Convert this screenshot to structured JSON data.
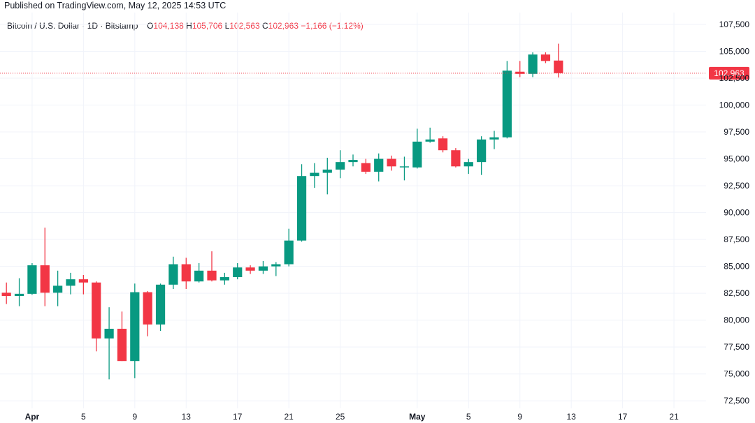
{
  "header": {
    "published": "Published on TradingView.com, May 12, 2025 14:53 UTC"
  },
  "legend": {
    "symbol": "Bitcoin / U.S. Dollar · 1D · Bitstamp",
    "o_label": "O",
    "o_value": "104,138",
    "h_label": "H",
    "h_value": "105,706",
    "l_label": "L",
    "l_value": "102,563",
    "c_label": "C",
    "c_value": "102,963",
    "change": "−1,166 (−1.12%)"
  },
  "colors": {
    "up": "#089981",
    "down": "#f23645",
    "grid": "#f0f3fa",
    "price_line": "#f23645",
    "axis_text": "#131722"
  },
  "chart_data": {
    "type": "candlestick",
    "title": "Bitcoin / U.S. Dollar · 1D · Bitstamp",
    "last_price_label": "102,963",
    "last_price": 102963,
    "ylim": [
      71800,
      108600
    ],
    "y_ticks": [
      72500,
      75000,
      77500,
      80000,
      82500,
      85000,
      87500,
      90000,
      92500,
      95000,
      97500,
      100000,
      102500,
      105000,
      107500
    ],
    "y_tick_labels": [
      "72,500",
      "75,000",
      "77,500",
      "80,000",
      "82,500",
      "85,000",
      "87,500",
      "90,000",
      "92,500",
      "95,000",
      "97,500",
      "100,000",
      "102,500",
      "105,000",
      "107,500"
    ],
    "x_tick_labels": [
      {
        "label": "Apr",
        "index": 2,
        "bold": true
      },
      {
        "label": "5",
        "index": 6,
        "bold": false
      },
      {
        "label": "9",
        "index": 10,
        "bold": false
      },
      {
        "label": "13",
        "index": 14,
        "bold": false
      },
      {
        "label": "17",
        "index": 18,
        "bold": false
      },
      {
        "label": "21",
        "index": 22,
        "bold": false
      },
      {
        "label": "25",
        "index": 26,
        "bold": false
      },
      {
        "label": "May",
        "index": 32,
        "bold": true
      },
      {
        "label": "5",
        "index": 36,
        "bold": false
      },
      {
        "label": "9",
        "index": 40,
        "bold": false
      },
      {
        "label": "13",
        "index": 44,
        "bold": false
      },
      {
        "label": "17",
        "index": 48,
        "bold": false
      },
      {
        "label": "21",
        "index": 52,
        "bold": false
      }
    ],
    "slots_total": 55,
    "candles": [
      {
        "date": "Mar 31",
        "o": 82550,
        "h": 83500,
        "l": 81500,
        "c": 82250
      },
      {
        "date": "Apr 1",
        "o": 82250,
        "h": 83900,
        "l": 81300,
        "c": 82450
      },
      {
        "date": "Apr 2",
        "o": 82450,
        "h": 85300,
        "l": 82350,
        "c": 85100
      },
      {
        "date": "Apr 3",
        "o": 85100,
        "h": 88600,
        "l": 81300,
        "c": 82550
      },
      {
        "date": "Apr 4",
        "o": 82550,
        "h": 84600,
        "l": 81300,
        "c": 83200
      },
      {
        "date": "Apr 5",
        "o": 83200,
        "h": 84400,
        "l": 82400,
        "c": 83800
      },
      {
        "date": "Apr 6",
        "o": 83800,
        "h": 84200,
        "l": 82400,
        "c": 83500
      },
      {
        "date": "Apr 7",
        "o": 83500,
        "h": 83600,
        "l": 77100,
        "c": 78300
      },
      {
        "date": "Apr 8",
        "o": 78300,
        "h": 81200,
        "l": 74500,
        "c": 79200
      },
      {
        "date": "Apr 9",
        "o": 79200,
        "h": 80800,
        "l": 76200,
        "c": 76200
      },
      {
        "date": "Apr 10",
        "o": 76200,
        "h": 83400,
        "l": 74600,
        "c": 82600
      },
      {
        "date": "Apr 11",
        "o": 82600,
        "h": 82700,
        "l": 78500,
        "c": 79600
      },
      {
        "date": "Apr 12",
        "o": 79600,
        "h": 83400,
        "l": 79000,
        "c": 83300
      },
      {
        "date": "Apr 13",
        "o": 83300,
        "h": 85900,
        "l": 82900,
        "c": 85200
      },
      {
        "date": "Apr 14",
        "o": 85200,
        "h": 85800,
        "l": 82900,
        "c": 83600
      },
      {
        "date": "Apr 15",
        "o": 83600,
        "h": 85300,
        "l": 83500,
        "c": 84600
      },
      {
        "date": "Apr 16",
        "o": 84600,
        "h": 86400,
        "l": 83600,
        "c": 83700
      },
      {
        "date": "Apr 17",
        "o": 83700,
        "h": 84400,
        "l": 83300,
        "c": 84000
      },
      {
        "date": "Apr 18",
        "o": 84000,
        "h": 85300,
        "l": 83800,
        "c": 84900
      },
      {
        "date": "Apr 19",
        "o": 84900,
        "h": 85100,
        "l": 84300,
        "c": 84600
      },
      {
        "date": "Apr 20",
        "o": 84600,
        "h": 85500,
        "l": 84300,
        "c": 85000
      },
      {
        "date": "Apr 21",
        "o": 85000,
        "h": 85400,
        "l": 84100,
        "c": 85200
      },
      {
        "date": "Apr 22",
        "o": 85200,
        "h": 88500,
        "l": 85000,
        "c": 87400
      },
      {
        "date": "Apr 23",
        "o": 87400,
        "h": 94500,
        "l": 87300,
        "c": 93400
      },
      {
        "date": "Apr 24",
        "o": 93400,
        "h": 94600,
        "l": 92300,
        "c": 93700
      },
      {
        "date": "Apr 25",
        "o": 93700,
        "h": 95100,
        "l": 91700,
        "c": 94000
      },
      {
        "date": "Apr 26",
        "o": 94000,
        "h": 95800,
        "l": 93200,
        "c": 94700
      },
      {
        "date": "Apr 27",
        "o": 94700,
        "h": 95400,
        "l": 94300,
        "c": 94900
      },
      {
        "date": "Apr 28",
        "o": 94600,
        "h": 95000,
        "l": 93600,
        "c": 93800
      },
      {
        "date": "Apr 29",
        "o": 93800,
        "h": 95500,
        "l": 92900,
        "c": 95000
      },
      {
        "date": "Apr 30",
        "o": 95000,
        "h": 95300,
        "l": 93900,
        "c": 94300
      },
      {
        "date": "May 1",
        "o": 94300,
        "h": 95200,
        "l": 93000,
        "c": 94300
      },
      {
        "date": "May 2",
        "o": 94200,
        "h": 97800,
        "l": 94100,
        "c": 96600
      },
      {
        "date": "May 3",
        "o": 96600,
        "h": 97900,
        "l": 96500,
        "c": 96800
      },
      {
        "date": "May 4",
        "o": 96900,
        "h": 97100,
        "l": 95600,
        "c": 95800
      },
      {
        "date": "May 5",
        "o": 95800,
        "h": 96000,
        "l": 94200,
        "c": 94300
      },
      {
        "date": "May 6",
        "o": 94300,
        "h": 95000,
        "l": 93600,
        "c": 94700
      },
      {
        "date": "May 7",
        "o": 94700,
        "h": 97100,
        "l": 93500,
        "c": 96800
      },
      {
        "date": "May 8",
        "o": 96800,
        "h": 97600,
        "l": 95900,
        "c": 97000
      },
      {
        "date": "May 9",
        "o": 97000,
        "h": 104100,
        "l": 96900,
        "c": 103200
      },
      {
        "date": "May 10",
        "o": 103100,
        "h": 104100,
        "l": 102600,
        "c": 102900
      },
      {
        "date": "May 11",
        "o": 102900,
        "h": 104900,
        "l": 102600,
        "c": 104700
      },
      {
        "date": "May 12",
        "o": 104700,
        "h": 104900,
        "l": 103900,
        "c": 104100
      },
      {
        "date": "May 12 (current)",
        "o": 104138,
        "h": 105706,
        "l": 102563,
        "c": 102963
      }
    ]
  }
}
